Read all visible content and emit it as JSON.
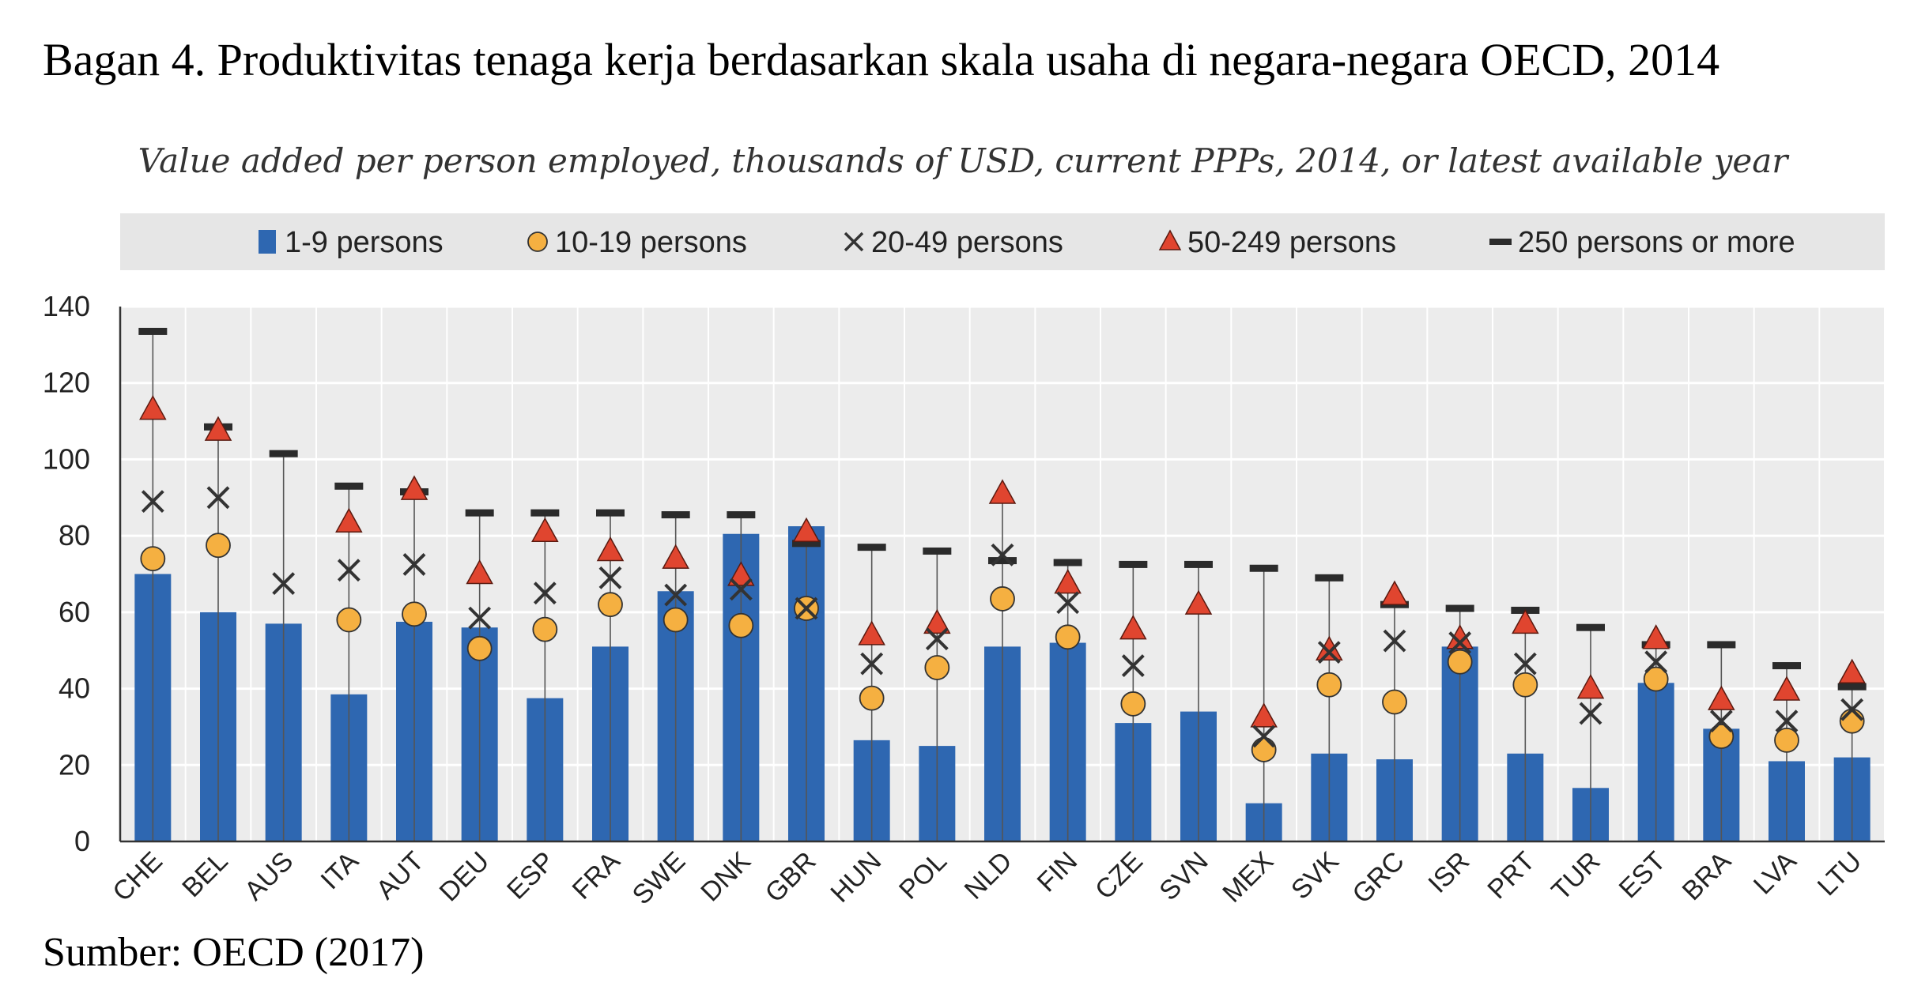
{
  "figure": {
    "title": "Bagan 4. Produktivitas tenaga kerja berdasarkan skala usaha di negara-negara OECD, 2014",
    "source": "Sumber: OECD (2017)"
  },
  "chart_data": {
    "type": "bar",
    "title": "",
    "subtitle": "Value added per person employed, thousands of USD, current PPPs, 2014, or latest available year",
    "xlabel": "",
    "ylabel": "",
    "ylim": [
      0,
      140
    ],
    "yticks": [
      0,
      20,
      40,
      60,
      80,
      100,
      120,
      140
    ],
    "grid": true,
    "legend_position": "top",
    "categories": [
      "CHE",
      "BEL",
      "AUS",
      "ITA",
      "AUT",
      "DEU",
      "ESP",
      "FRA",
      "SWE",
      "DNK",
      "GBR",
      "HUN",
      "POL",
      "NLD",
      "FIN",
      "CZE",
      "SVN",
      "MEX",
      "SVK",
      "GRC",
      "ISR",
      "PRT",
      "TUR",
      "EST",
      "BRA",
      "LVA",
      "LTU"
    ],
    "series": [
      {
        "name": "1-9 persons",
        "marker": "bar",
        "color": "#2e67b1",
        "values": [
          70,
          60,
          57,
          38.5,
          57.5,
          56,
          37.5,
          51,
          65.5,
          80.5,
          82.5,
          26.5,
          25,
          51,
          52,
          31,
          34,
          10,
          23,
          21.5,
          51,
          23,
          14,
          41.5,
          29.5,
          21,
          22
        ]
      },
      {
        "name": "10-19 persons",
        "marker": "circle",
        "color": "#f5b041",
        "values": [
          74,
          77.5,
          null,
          58,
          59.5,
          50.5,
          55.5,
          62,
          58,
          56.5,
          61,
          37.5,
          45.5,
          63.5,
          53.5,
          36,
          null,
          24,
          41,
          36.5,
          47,
          41,
          null,
          42.5,
          27.5,
          26.5,
          31.5
        ]
      },
      {
        "name": "20-49 persons",
        "marker": "x",
        "color": "#333333",
        "values": [
          89,
          90,
          67.5,
          71,
          72.5,
          58.5,
          65,
          69,
          64.5,
          66,
          61,
          46.5,
          53,
          75,
          62.5,
          46,
          null,
          27.5,
          49.5,
          52.5,
          52,
          46.5,
          33.5,
          47,
          31.5,
          31.5,
          34.5
        ]
      },
      {
        "name": "50-249 persons",
        "marker": "triangle",
        "color": "#e0452f",
        "values": [
          113,
          107.5,
          null,
          83.5,
          92,
          70,
          81,
          76,
          74,
          69.5,
          81,
          54,
          57,
          91,
          67.5,
          55.5,
          62,
          32.5,
          50,
          64.5,
          53,
          57,
          40,
          53,
          37,
          39.5,
          44
        ]
      },
      {
        "name": "250 persons or more",
        "marker": "dash",
        "color": "#2b2b2b",
        "values": [
          133.5,
          108.5,
          101.5,
          93,
          91.5,
          86,
          86,
          86,
          85.5,
          85.5,
          78,
          77,
          76,
          73.5,
          73,
          72.5,
          72.5,
          71.5,
          69,
          62,
          61,
          60.5,
          56,
          51.5,
          51.5,
          46,
          40.5
        ]
      }
    ]
  }
}
